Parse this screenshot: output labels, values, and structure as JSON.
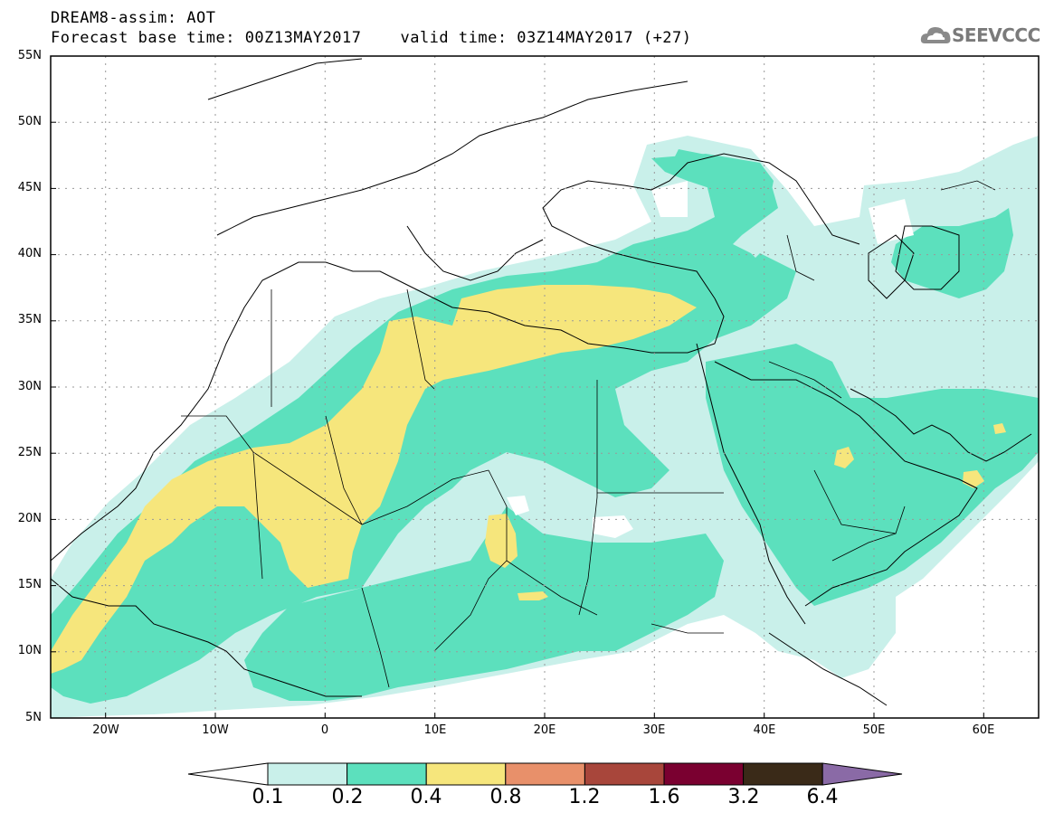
{
  "header": {
    "title": "DREAM8-assim: AOT",
    "base_time": "Forecast base time: 00Z13MAY2017",
    "valid_time": "valid time: 03Z14MAY2017 (+27)"
  },
  "logo": {
    "text": "SEEVCCC",
    "icon": "cloud-icon"
  },
  "map": {
    "lon_range": [
      -25,
      65
    ],
    "lat_range": [
      5,
      55
    ],
    "lat_ticks": [
      "55N",
      "50N",
      "45N",
      "40N",
      "35N",
      "30N",
      "25N",
      "20N",
      "15N",
      "10N",
      "5N"
    ],
    "lon_ticks": [
      "20W",
      "10W",
      "0",
      "10E",
      "20E",
      "30E",
      "40E",
      "50E",
      "60E"
    ],
    "gridlines": "dotted"
  },
  "colorbar": {
    "labels": [
      "0.1",
      "0.2",
      "0.4",
      "0.8",
      "1.2",
      "1.6",
      "3.2",
      "6.4"
    ],
    "colors": [
      "#ffffff",
      "#c9f0ea",
      "#5ce0bd",
      "#f6e67c",
      "#e8906a",
      "#a8463b",
      "#7a0030",
      "#3a2a18",
      "#8a6aa6"
    ]
  }
}
